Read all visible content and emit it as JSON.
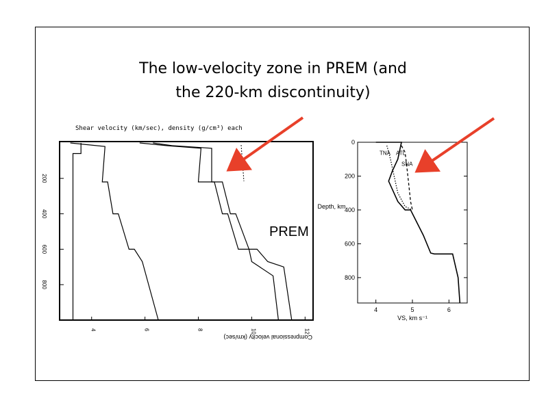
{
  "slide": {
    "title_line1": "The low-velocity zone in PREM (and",
    "title_line2": "the 220-km discontinuity)",
    "prem_label": "PREM",
    "arrow_color": "#e8402a"
  },
  "chart_data": [
    {
      "type": "line",
      "top_label": "Shear velocity (km/sec), density (g/cm³) each",
      "bottom_label": "Compressional velocity (km/sec)",
      "y_tick_labels": [
        "200",
        "400",
        "600",
        "800"
      ],
      "x_tick_labels": [
        "4",
        "6",
        "8",
        "10",
        "12"
      ],
      "ylim": [
        0,
        1000
      ],
      "series": [
        {
          "name": "",
          "x": [
            3.6,
            3.6,
            3.3,
            3.3
          ],
          "y": [
            0,
            60,
            60,
            1000
          ]
        },
        {
          "name": "",
          "x": [
            5.8,
            6.8,
            8.1,
            8.0,
            8.6,
            8.9,
            9.1,
            9.5,
            9.9,
            10.0,
            10.3,
            10.8,
            11.0
          ],
          "y": [
            0,
            15,
            30,
            220,
            220,
            400,
            400,
            600,
            600,
            670,
            700,
            750,
            1000
          ]
        },
        {
          "name": "",
          "x": [
            6.3,
            7.0,
            8.5,
            8.5,
            8.9,
            9.2,
            9.4,
            9.9,
            10.2,
            10.6,
            11.2,
            11.5
          ],
          "y": [
            0,
            15,
            30,
            220,
            220,
            400,
            400,
            600,
            600,
            670,
            700,
            1000
          ]
        },
        {
          "name": "",
          "x": [
            3.2,
            4.5,
            4.5,
            4.4,
            4.6,
            4.8,
            5.0,
            5.4,
            5.6,
            5.9,
            6.5
          ],
          "y": [
            0,
            20,
            24,
            220,
            220,
            400,
            400,
            600,
            600,
            670,
            1000
          ]
        }
      ]
    },
    {
      "type": "line",
      "ylabel": "Depth, km",
      "xlabel": "VS, km s⁻¹",
      "xlim": [
        3.5,
        6.5
      ],
      "ylim": [
        0,
        950
      ],
      "y_ticks": [
        0,
        200,
        400,
        600,
        800
      ],
      "x_ticks": [
        4,
        5,
        6
      ],
      "annotations": [
        "TNA",
        "ATL",
        "SNA"
      ],
      "series": [
        {
          "name": "",
          "x": [
            4.0,
            4.7,
            4.6,
            4.45,
            4.35,
            4.6,
            4.8,
            4.95,
            5.3,
            5.5,
            5.6,
            6.1,
            6.25,
            6.3
          ],
          "y": [
            0,
            0,
            100,
            170,
            230,
            350,
            400,
            400,
            550,
            655,
            660,
            660,
            800,
            950
          ]
        },
        {
          "name": "",
          "x": [
            4.3,
            4.4,
            4.5,
            4.6,
            4.8,
            5.0
          ],
          "y": [
            20,
            100,
            200,
            300,
            380,
            400
          ]
        },
        {
          "name": "",
          "x": [
            4.7,
            4.8,
            4.85,
            4.9,
            4.95,
            5.0
          ],
          "y": [
            20,
            60,
            150,
            250,
            350,
            400
          ]
        }
      ]
    }
  ]
}
